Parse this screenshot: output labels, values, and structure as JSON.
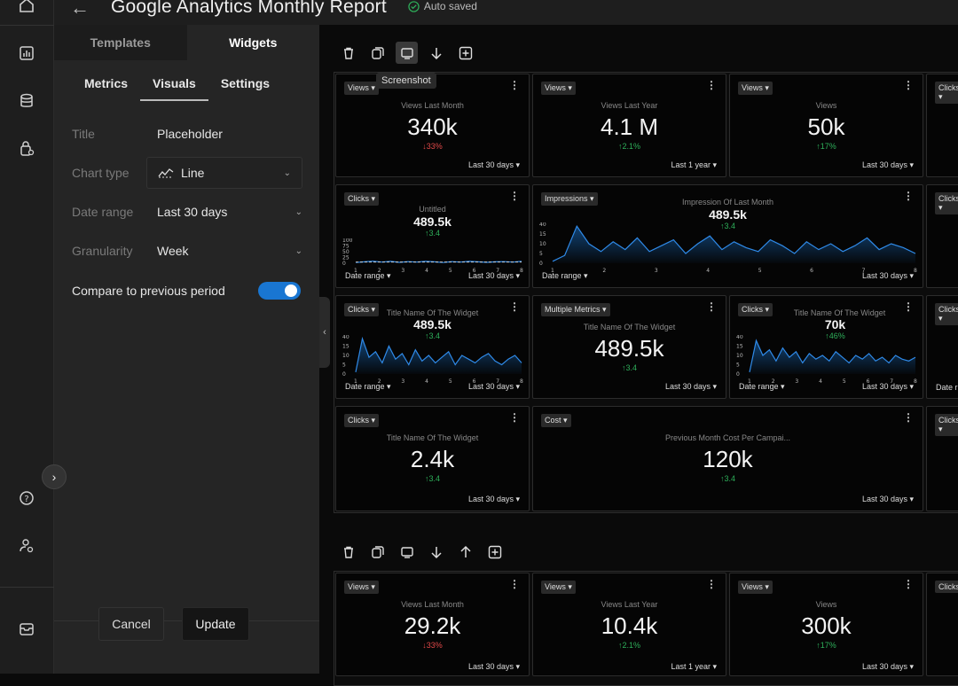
{
  "header": {
    "title": "Google Analytics Monthly Report",
    "saved": "Auto saved"
  },
  "panel": {
    "tabs": [
      "Templates",
      "Widgets"
    ],
    "subtabs": [
      "Metrics",
      "Visuals",
      "Settings"
    ],
    "fields": {
      "title_label": "Title",
      "title_value": "Placeholder",
      "chart_label": "Chart type",
      "chart_value": "Line",
      "date_label": "Date range",
      "date_value": "Last 30 days",
      "gran_label": "Granularity",
      "gran_value": "Week",
      "compare_label": "Compare to previous period"
    },
    "cancel": "Cancel",
    "update": "Update"
  },
  "tooltip": "Screenshot",
  "colors": {
    "accent": "#1976d2",
    "up": "#2eaf5a",
    "down": "#e04848"
  },
  "cards": {
    "c1": {
      "pill": "Views ▾",
      "title": "Views Last Month",
      "value": "340k",
      "change": "↓33%",
      "range": "Last 30 days ▾"
    },
    "c2": {
      "pill": "Views ▾",
      "title": "Views Last Year",
      "value": "4.1 M",
      "change": "↑2.1%",
      "range": "Last 1 year ▾"
    },
    "c3": {
      "pill": "Views ▾",
      "title": "Views",
      "value": "50k",
      "change": "↑17%",
      "range": "Last 30 days ▾"
    },
    "c4": {
      "pill": "Clicks ▾"
    },
    "c5": {
      "pill": "Clicks ▾",
      "title": "Untitled",
      "value": "489.5k",
      "change": "↑3.4",
      "date": "Date range ▾",
      "range": "Last 30 days ▾",
      "yticks": [
        "100",
        "75",
        "50",
        "25",
        "0"
      ],
      "xticks": [
        "1",
        "2",
        "3",
        "4",
        "5",
        "6",
        "7",
        "8"
      ]
    },
    "c6": {
      "pill": "Impressions ▾",
      "title": "Impression Of Last Month",
      "value": "489.5k",
      "change": "↑3.4",
      "date": "Date range ▾",
      "range": "Last 30 days ▾",
      "yticks": [
        "40",
        "15",
        "10",
        "5",
        "0"
      ],
      "xticks": [
        "1",
        "2",
        "3",
        "4",
        "5",
        "6",
        "7",
        "8"
      ]
    },
    "c7": {
      "pill": "Clicks ▾"
    },
    "c8": {
      "pill": "Clicks ▾",
      "title": "Title Name Of The Widget",
      "value": "489.5k",
      "change": "↑3.4",
      "date": "Date range ▾",
      "range": "Last 30 days ▾",
      "yticks": [
        "40",
        "15",
        "10",
        "5",
        "0"
      ],
      "xticks": [
        "1",
        "2",
        "3",
        "4",
        "5",
        "6",
        "7",
        "8"
      ]
    },
    "c9": {
      "pill": "Multiple Metrics ▾",
      "title": "Title Name Of The Widget",
      "value": "489.5k",
      "change": "↑3.4",
      "range": "Last 30 days ▾"
    },
    "c10": {
      "pill": "Clicks ▾",
      "title": "Title Name Of The Widget",
      "value": "70k",
      "change": "↑46%",
      "date": "Date range ▾",
      "range": "Last 30 days ▾",
      "yticks": [
        "40",
        "15",
        "10",
        "5",
        "0"
      ],
      "xticks": [
        "1",
        "2",
        "3",
        "4",
        "5",
        "6",
        "7",
        "8"
      ]
    },
    "c11": {
      "pill": "Clicks ▾",
      "date": "Date r"
    },
    "c12": {
      "pill": "Clicks ▾",
      "title": "Title Name Of The Widget",
      "value": "2.4k",
      "change": "↑3.4",
      "range": "Last 30 days ▾"
    },
    "c13": {
      "pill": "Cost ▾",
      "title": "Previous Month Cost Per Campai...",
      "value": "120k",
      "change": "↑3.4",
      "range": "Last 30 days ▾"
    },
    "c14": {
      "pill": "Clicks ▾"
    },
    "d1": {
      "pill": "Views ▾",
      "title": "Views Last Month",
      "value": "29.2k",
      "change": "↓33%",
      "range": "Last 30 days ▾"
    },
    "d2": {
      "pill": "Views ▾",
      "title": "Views Last Year",
      "value": "10.4k",
      "change": "↑2.1%",
      "range": "Last 1 year ▾"
    },
    "d3": {
      "pill": "Views ▾",
      "title": "Views",
      "value": "300k",
      "change": "↑17%",
      "range": "Last 30 days ▾"
    },
    "d4": {
      "pill": "Clicks"
    }
  },
  "chart_data": [
    {
      "type": "line",
      "series": [
        {
          "values": [
            3,
            6,
            9,
            5,
            8,
            4,
            7,
            5,
            8,
            6,
            3,
            7,
            5,
            8,
            6,
            4,
            6,
            7,
            5,
            8
          ]
        },
        {
          "values": [
            5,
            5,
            5,
            5,
            5,
            5,
            5,
            5,
            5,
            5,
            5,
            5,
            5,
            5,
            5,
            5,
            5,
            5,
            5,
            5
          ]
        }
      ],
      "ylim": [
        0,
        100
      ]
    },
    {
      "type": "area",
      "series": [
        {
          "values": [
            2,
            8,
            38,
            20,
            12,
            22,
            14,
            26,
            12,
            18,
            24,
            10,
            20,
            28,
            14,
            22,
            16,
            12,
            24,
            18,
            10,
            22,
            14,
            20,
            12,
            18,
            26,
            14,
            20,
            16,
            10
          ]
        }
      ],
      "ylim": [
        0,
        40
      ]
    },
    {
      "type": "area",
      "series": [
        {
          "values": [
            2,
            38,
            18,
            24,
            12,
            30,
            16,
            22,
            10,
            26,
            14,
            20,
            12,
            18,
            24,
            10,
            20,
            16,
            12,
            18,
            22,
            14,
            10,
            16,
            20,
            12
          ]
        }
      ],
      "ylim": [
        0,
        40
      ]
    },
    {
      "type": "area",
      "series": [
        {
          "values": [
            2,
            36,
            20,
            26,
            14,
            28,
            18,
            24,
            12,
            22,
            16,
            20,
            14,
            24,
            18,
            12,
            20,
            16,
            22,
            14,
            18,
            12,
            20,
            16,
            14,
            18
          ]
        }
      ],
      "ylim": [
        0,
        40
      ]
    }
  ]
}
